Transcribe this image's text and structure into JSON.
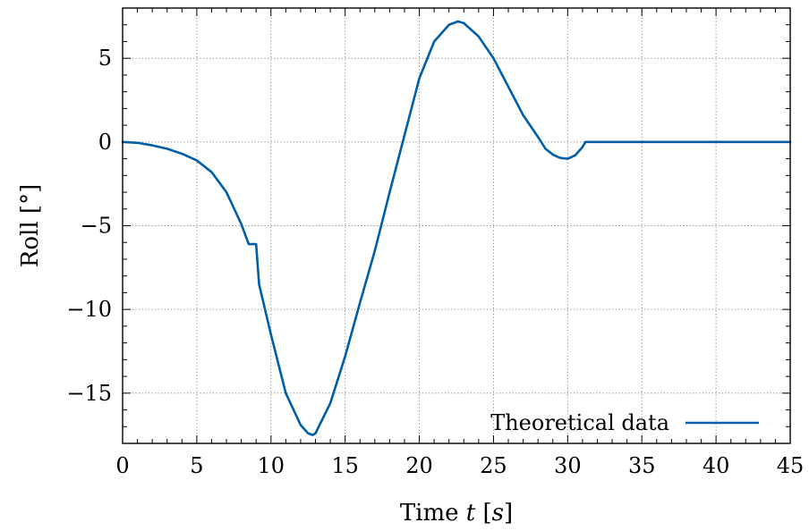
{
  "chart_data": {
    "type": "line",
    "title": "",
    "xlabel": "Time t [s]",
    "xlabel_parts": {
      "prefix": "Time ",
      "var": "t",
      "unit_open": " [",
      "unit": "s",
      "unit_close": "]"
    },
    "ylabel": "Roll [°]",
    "xlim": [
      0,
      45
    ],
    "ylim": [
      -18,
      8
    ],
    "xticks": [
      0,
      5,
      10,
      15,
      20,
      25,
      30,
      35,
      40,
      45
    ],
    "yticks": [
      5,
      0,
      -5,
      -10,
      -15
    ],
    "xtick_labels": [
      "0",
      "5",
      "10",
      "15",
      "20",
      "25",
      "30",
      "35",
      "40",
      "45"
    ],
    "ytick_labels": [
      "5",
      "0",
      "−5",
      "−10",
      "−15"
    ],
    "x_minor_step": 1,
    "y_minor_step": 1,
    "grid": true,
    "legend_position": "bottom-right",
    "line_color": "#005ea8",
    "series": [
      {
        "name": "Theoretical data",
        "x": [
          0,
          1,
          2,
          3,
          4,
          5,
          6,
          7,
          8,
          8.5,
          9,
          9.2,
          10,
          11,
          12,
          12.5,
          12.8,
          13,
          14,
          15,
          16,
          17,
          18,
          19,
          20,
          21,
          22,
          22.6,
          23,
          24,
          25,
          26,
          27,
          28,
          28.5,
          29,
          29.5,
          30,
          30.5,
          31,
          31.2,
          31.5,
          35,
          40,
          45
        ],
        "y": [
          0,
          -0.05,
          -0.2,
          -0.4,
          -0.7,
          -1.1,
          -1.8,
          -3.0,
          -4.9,
          -6.1,
          -6.1,
          -8.5,
          -11.5,
          -15.0,
          -16.9,
          -17.4,
          -17.5,
          -17.4,
          -15.6,
          -12.8,
          -9.6,
          -6.5,
          -3.0,
          0.4,
          3.8,
          6.0,
          7.0,
          7.2,
          7.1,
          6.3,
          5.0,
          3.3,
          1.6,
          0.3,
          -0.4,
          -0.75,
          -0.95,
          -1.0,
          -0.8,
          -0.3,
          0,
          0,
          0,
          0,
          0
        ]
      }
    ]
  }
}
